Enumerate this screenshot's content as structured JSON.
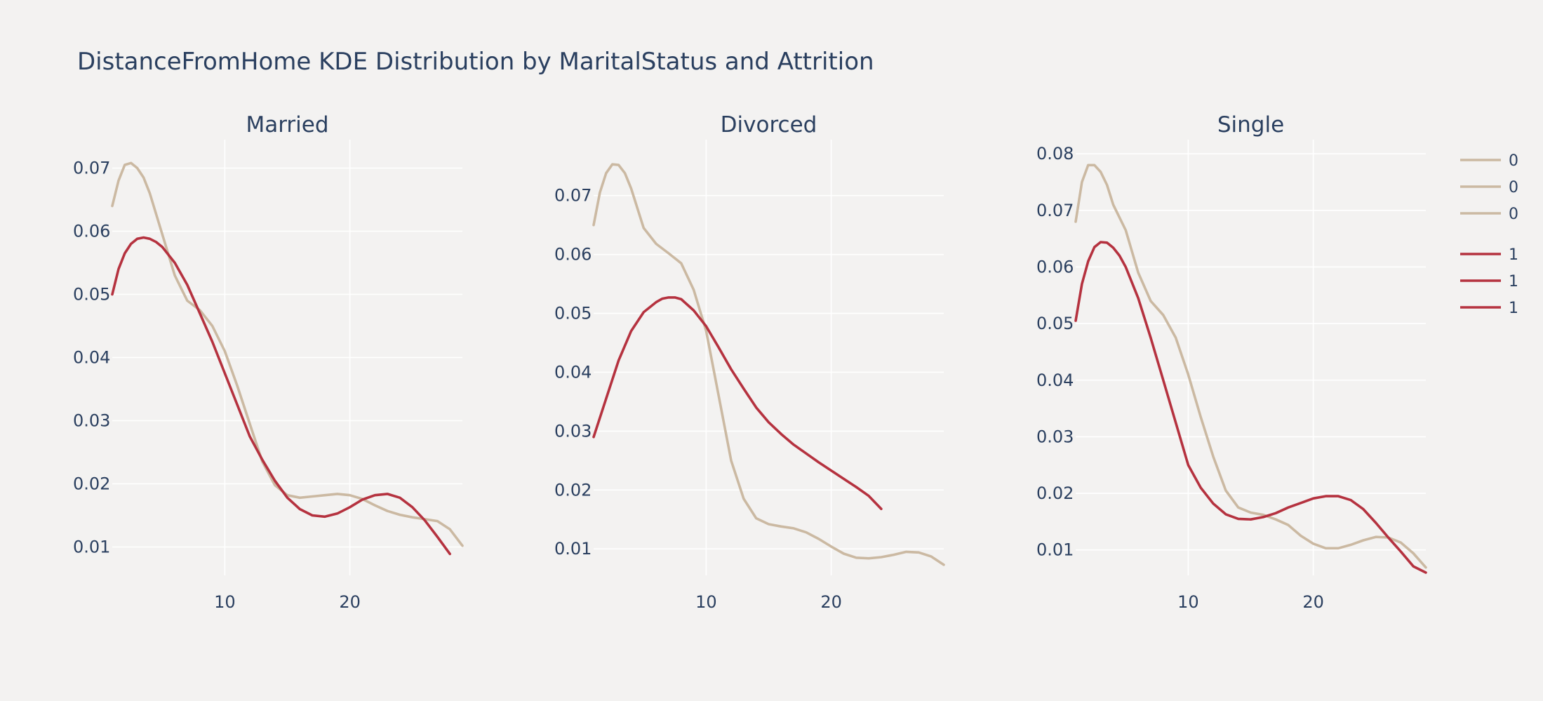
{
  "chart_data": {
    "type": "line",
    "title": "DistanceFromHome KDE Distribution by MaritalStatus and Attrition",
    "colors": {
      "0": "#cbb9a2",
      "1": "#b5323f"
    },
    "panels": [
      {
        "subtitle": "Married",
        "xlim": [
          1,
          29
        ],
        "ylim": [
          0.0055,
          0.0745
        ],
        "x_ticks": [
          10,
          20
        ],
        "y_ticks": [
          0.01,
          0.02,
          0.03,
          0.04,
          0.05,
          0.06,
          0.07
        ],
        "series": [
          {
            "name": "0",
            "x": [
              1,
              1.5,
              2,
              2.5,
              3,
              3.5,
              4,
              5,
              6,
              7,
              8,
              9,
              10,
              11,
              12,
              13,
              14,
              15,
              16,
              17,
              18,
              19,
              20,
              21,
              22,
              23,
              24,
              25,
              26,
              27,
              28,
              29
            ],
            "y": [
              0.064,
              0.068,
              0.0705,
              0.0708,
              0.07,
              0.0685,
              0.066,
              0.0595,
              0.053,
              0.049,
              0.0475,
              0.045,
              0.041,
              0.0355,
              0.0295,
              0.0235,
              0.0198,
              0.0182,
              0.0178,
              0.018,
              0.0182,
              0.0184,
              0.0182,
              0.0176,
              0.0166,
              0.0157,
              0.0151,
              0.0147,
              0.0144,
              0.0141,
              0.0128,
              0.0102
            ]
          },
          {
            "name": "1",
            "x": [
              1,
              1.5,
              2,
              2.5,
              3,
              3.5,
              4,
              4.5,
              5,
              6,
              7,
              8,
              9,
              10,
              11,
              12,
              13,
              14,
              15,
              16,
              17,
              18,
              19,
              20,
              21,
              22,
              23,
              24,
              25,
              26,
              27,
              28
            ],
            "y": [
              0.05,
              0.054,
              0.0565,
              0.058,
              0.0588,
              0.059,
              0.0588,
              0.0583,
              0.0575,
              0.055,
              0.0515,
              0.047,
              0.0425,
              0.0375,
              0.0325,
              0.0275,
              0.0238,
              0.0205,
              0.0178,
              0.016,
              0.015,
              0.0148,
              0.0153,
              0.0163,
              0.0175,
              0.0182,
              0.0184,
              0.0178,
              0.0163,
              0.0142,
              0.0116,
              0.0089
            ]
          }
        ]
      },
      {
        "subtitle": "Divorced",
        "xlim": [
          1,
          29
        ],
        "ylim": [
          0.0055,
          0.0795
        ],
        "x_ticks": [
          10,
          20
        ],
        "y_ticks": [
          0.01,
          0.02,
          0.03,
          0.04,
          0.05,
          0.06,
          0.07
        ],
        "series": [
          {
            "name": "0",
            "x": [
              1,
              1.5,
              2,
              2.5,
              3,
              3.5,
              4,
              5,
              6,
              7,
              8,
              9,
              10,
              11,
              12,
              13,
              14,
              15,
              16,
              17,
              18,
              19,
              20,
              21,
              22,
              23,
              24,
              25,
              26,
              27,
              28,
              29
            ],
            "y": [
              0.065,
              0.0705,
              0.0738,
              0.0753,
              0.0752,
              0.0738,
              0.0712,
              0.0645,
              0.0618,
              0.0602,
              0.0585,
              0.054,
              0.047,
              0.036,
              0.025,
              0.0185,
              0.0152,
              0.0142,
              0.0138,
              0.0135,
              0.0128,
              0.0117,
              0.0104,
              0.0092,
              0.0085,
              0.0084,
              0.0086,
              0.009,
              0.0095,
              0.0094,
              0.0087,
              0.0073
            ]
          },
          {
            "name": "1",
            "x": [
              1,
              2,
              3,
              4,
              5,
              6,
              6.5,
              7,
              7.5,
              8,
              9,
              10,
              11,
              12,
              13,
              14,
              15,
              16,
              17,
              18,
              19,
              20,
              21,
              22,
              23,
              24
            ],
            "y": [
              0.029,
              0.0355,
              0.042,
              0.047,
              0.0502,
              0.0519,
              0.0525,
              0.0527,
              0.0527,
              0.0524,
              0.0505,
              0.0478,
              0.0442,
              0.0405,
              0.0372,
              0.034,
              0.0315,
              0.0295,
              0.0277,
              0.0262,
              0.0247,
              0.0233,
              0.0219,
              0.0205,
              0.019,
              0.0168
            ]
          }
        ]
      },
      {
        "subtitle": "Single",
        "xlim": [
          1,
          29
        ],
        "ylim": [
          0.0055,
          0.0825
        ],
        "x_ticks": [
          10,
          20
        ],
        "y_ticks": [
          0.01,
          0.02,
          0.03,
          0.04,
          0.05,
          0.06,
          0.07,
          0.08
        ],
        "series": [
          {
            "name": "0",
            "x": [
              1,
              1.5,
              2,
              2.5,
              3,
              3.5,
              4,
              5,
              6,
              7,
              8,
              9,
              10,
              11,
              12,
              13,
              14,
              15,
              16,
              17,
              18,
              19,
              20,
              21,
              22,
              23,
              24,
              25,
              26,
              27,
              28,
              29
            ],
            "y": [
              0.068,
              0.075,
              0.078,
              0.078,
              0.0768,
              0.0745,
              0.071,
              0.0665,
              0.059,
              0.054,
              0.0515,
              0.0475,
              0.041,
              0.0335,
              0.0265,
              0.0205,
              0.0175,
              0.0166,
              0.0162,
              0.0154,
              0.0144,
              0.0125,
              0.0111,
              0.0103,
              0.0103,
              0.0109,
              0.0117,
              0.0123,
              0.0122,
              0.0113,
              0.0094,
              0.0069
            ]
          },
          {
            "name": "1",
            "x": [
              1,
              1.5,
              2,
              2.5,
              3,
              3.5,
              4,
              4.5,
              5,
              6,
              7,
              8,
              9,
              10,
              11,
              12,
              13,
              14,
              15,
              16,
              17,
              18,
              19,
              20,
              21,
              22,
              23,
              24,
              25,
              26,
              27,
              28,
              29
            ],
            "y": [
              0.0505,
              0.057,
              0.061,
              0.0635,
              0.0644,
              0.0643,
              0.0634,
              0.062,
              0.06,
              0.0545,
              0.0475,
              0.04,
              0.0325,
              0.025,
              0.021,
              0.0182,
              0.0163,
              0.0155,
              0.0154,
              0.0158,
              0.0165,
              0.0175,
              0.0183,
              0.0191,
              0.0195,
              0.0195,
              0.0188,
              0.0172,
              0.0148,
              0.0122,
              0.0097,
              0.0071,
              0.006
            ]
          }
        ]
      }
    ],
    "legend": {
      "position": "right",
      "entries": [
        {
          "label": "0",
          "color": "#cbb9a2"
        },
        {
          "label": "0",
          "color": "#cbb9a2"
        },
        {
          "label": "0",
          "color": "#cbb9a2"
        },
        {
          "label": "1",
          "color": "#b5323f"
        },
        {
          "label": "1",
          "color": "#b5323f"
        },
        {
          "label": "1",
          "color": "#b5323f"
        }
      ]
    }
  }
}
